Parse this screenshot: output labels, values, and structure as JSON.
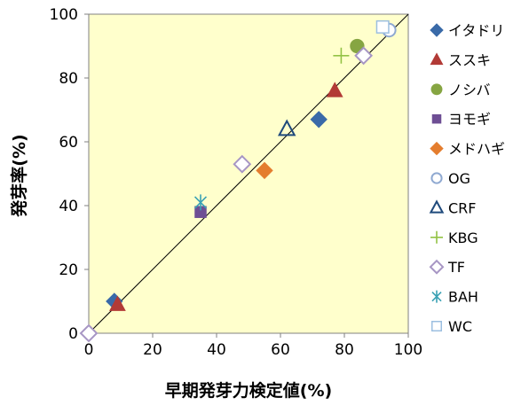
{
  "chart_data": {
    "type": "scatter",
    "xlabel": "早期発芽力検定値(%)",
    "ylabel": "発芽率(%)",
    "xlim": [
      0,
      100
    ],
    "ylim": [
      0,
      100
    ],
    "xticks": [
      0,
      20,
      40,
      60,
      80,
      100
    ],
    "yticks": [
      0,
      20,
      40,
      60,
      80,
      100
    ],
    "grid": false,
    "plot_background": "#ffffcc",
    "legend_position": "right",
    "reference_line": {
      "from": [
        0,
        0
      ],
      "to": [
        100,
        100
      ]
    },
    "series": [
      {
        "name": "イタドリ",
        "marker": "diamond-filled",
        "color": "#3a6aa8",
        "points": [
          [
            8,
            10
          ],
          [
            72,
            67
          ]
        ]
      },
      {
        "name": "ススキ",
        "marker": "triangle-filled",
        "color": "#b23a36",
        "points": [
          [
            9,
            9
          ],
          [
            77,
            76
          ]
        ]
      },
      {
        "name": "ノシバ",
        "marker": "circle-filled",
        "color": "#86a542",
        "points": [
          [
            84,
            90
          ]
        ]
      },
      {
        "name": "ヨモギ",
        "marker": "square-filled",
        "color": "#6e4e94",
        "points": [
          [
            35,
            38
          ]
        ]
      },
      {
        "name": "メドハギ",
        "marker": "diamond-filled",
        "color": "#e47d2e",
        "points": [
          [
            55,
            51
          ]
        ]
      },
      {
        "name": "OG",
        "marker": "circle-open",
        "color": "#8fa9d1",
        "points": [
          [
            94,
            95
          ]
        ]
      },
      {
        "name": "CRF",
        "marker": "triangle-open",
        "color": "#1f4a7c",
        "points": [
          [
            62,
            64
          ]
        ]
      },
      {
        "name": "KBG",
        "marker": "plus",
        "color": "#93c245",
        "points": [
          [
            79,
            87
          ]
        ]
      },
      {
        "name": "TF",
        "marker": "diamond-open",
        "color": "#a796c4",
        "points": [
          [
            0,
            0
          ],
          [
            48,
            53
          ],
          [
            86,
            87
          ]
        ]
      },
      {
        "name": "BAH",
        "marker": "asterisk",
        "color": "#3aa1b4",
        "points": [
          [
            35,
            41
          ]
        ]
      },
      {
        "name": "WC",
        "marker": "square-open",
        "color": "#9cbfe0",
        "points": [
          [
            92,
            96
          ]
        ]
      }
    ]
  }
}
